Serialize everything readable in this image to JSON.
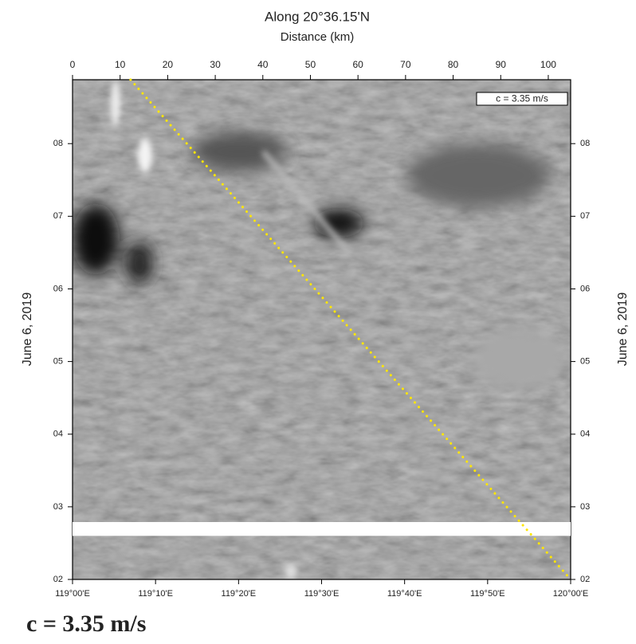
{
  "chart_data": {
    "type": "line",
    "title": "Along 20°36.15'N",
    "xlabel": "Distance (km)",
    "ylabel": "June 6, 2019",
    "caption": "c = 3.35 m/s",
    "xlim": [
      0,
      104.7
    ],
    "xticks": [
      0,
      10,
      20,
      30,
      40,
      50,
      60,
      70,
      80,
      90,
      100
    ],
    "x2lim": [
      0,
      60
    ],
    "x2ticks": [
      {
        "value": 0,
        "label": "119°00'E"
      },
      {
        "value": 10,
        "label": "119°10'E"
      },
      {
        "value": 20,
        "label": "119°20'E"
      },
      {
        "value": 30,
        "label": "119°30'E"
      },
      {
        "value": 40,
        "label": "119°40'E"
      },
      {
        "value": 50,
        "label": "119°50'E"
      },
      {
        "value": 60,
        "label": "120°00'E"
      }
    ],
    "ylim": [
      2,
      8.88
    ],
    "yticks": [
      {
        "value": 2,
        "label": "02"
      },
      {
        "value": 3,
        "label": "03"
      },
      {
        "value": 4,
        "label": "04"
      },
      {
        "value": 5,
        "label": "05"
      },
      {
        "value": 6,
        "label": "06"
      },
      {
        "value": 7,
        "label": "07"
      },
      {
        "value": 8,
        "label": "08"
      }
    ],
    "data_gap": [
      2.6,
      2.79
    ],
    "series": [
      {
        "name": "c = 3.35 m/s",
        "color": "#ffe600",
        "x": [
          12.2,
          104.7
        ],
        "values": [
          8.88,
          2.0
        ]
      }
    ]
  }
}
